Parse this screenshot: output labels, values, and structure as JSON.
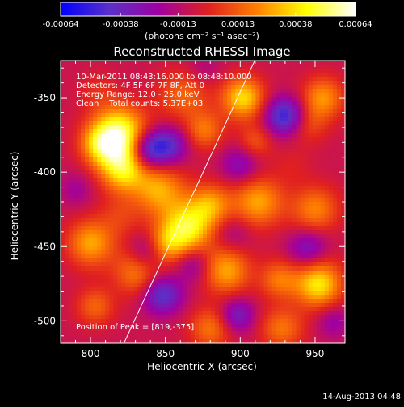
{
  "chart_data": {
    "type": "heatmap",
    "title": "Reconstructed RHESSI Image",
    "xlabel": "Heliocentric X (arcsec)",
    "ylabel": "Heliocentric Y (arcsec)",
    "xlim": [
      780,
      970
    ],
    "ylim": [
      -515,
      -325
    ],
    "x_ticks": [
      800,
      850,
      900,
      950
    ],
    "x_tick_labels": [
      "800",
      "850",
      "900",
      "950"
    ],
    "y_ticks": [
      -350,
      -400,
      -450,
      -500
    ],
    "y_tick_labels": [
      "-350",
      "-400",
      "-450",
      "-500"
    ],
    "colorbar": {
      "range": [
        -0.00064,
        0.00064
      ],
      "tick_values": [
        -0.00064,
        -0.00038,
        -0.00013,
        0.00013,
        0.00038,
        0.00064
      ],
      "tick_labels": [
        "-0.00064",
        "-0.00038",
        "-0.00013",
        "0.00013",
        "0.00038",
        "0.00064"
      ],
      "unit_label": "(photons cm⁻² s⁻¹ asec⁻²)",
      "colors": [
        "#0000ff",
        "#5a30c8",
        "#a000a0",
        "#e02020",
        "#ff8000",
        "#ffff00",
        "#ffffff"
      ]
    },
    "annotations": {
      "time_range": "10-Mar-2011 08:43:16.000 to 08:48:10.000",
      "detectors": "Detectors: 4F 5F 6F 7F 8F, Att 0",
      "energy_range": "Energy Range: 12.0 - 25.0 keV",
      "clean_counts": "Clean    Total counts: 5.37E+03",
      "peak": "Position of Peak = [819,-375]"
    },
    "limb_line": [
      [
        820,
        -520
      ],
      [
        912,
        -320
      ]
    ],
    "blobs": [
      {
        "x": 819,
        "y": -375,
        "v": 1.0,
        "r": 13
      },
      {
        "x": 822,
        "y": -398,
        "v": 0.7,
        "r": 11
      },
      {
        "x": 806,
        "y": -382,
        "v": 0.45,
        "r": 9
      },
      {
        "x": 862,
        "y": -348,
        "v": 0.35,
        "r": 12
      },
      {
        "x": 876,
        "y": -372,
        "v": 0.4,
        "r": 9
      },
      {
        "x": 902,
        "y": -350,
        "v": 0.7,
        "r": 10
      },
      {
        "x": 910,
        "y": -380,
        "v": 0.3,
        "r": 8
      },
      {
        "x": 955,
        "y": -350,
        "v": 0.5,
        "r": 10
      },
      {
        "x": 945,
        "y": -368,
        "v": 0.25,
        "r": 9
      },
      {
        "x": 846,
        "y": -412,
        "v": 0.55,
        "r": 12
      },
      {
        "x": 864,
        "y": -438,
        "v": 0.8,
        "r": 12
      },
      {
        "x": 880,
        "y": -422,
        "v": 0.5,
        "r": 10
      },
      {
        "x": 912,
        "y": -420,
        "v": 0.55,
        "r": 12
      },
      {
        "x": 950,
        "y": -425,
        "v": 0.45,
        "r": 11
      },
      {
        "x": 800,
        "y": -448,
        "v": 0.55,
        "r": 11
      },
      {
        "x": 832,
        "y": -466,
        "v": 0.5,
        "r": 11
      },
      {
        "x": 850,
        "y": -450,
        "v": 0.45,
        "r": 9
      },
      {
        "x": 891,
        "y": -466,
        "v": 0.55,
        "r": 11
      },
      {
        "x": 926,
        "y": -472,
        "v": 0.4,
        "r": 9
      },
      {
        "x": 952,
        "y": -475,
        "v": 0.75,
        "r": 11
      },
      {
        "x": 803,
        "y": -490,
        "v": 0.35,
        "r": 9
      },
      {
        "x": 880,
        "y": -505,
        "v": 0.4,
        "r": 10
      },
      {
        "x": 928,
        "y": -505,
        "v": 0.4,
        "r": 10
      },
      {
        "x": 805,
        "y": -345,
        "v": 0.15,
        "r": 9
      },
      {
        "x": 820,
        "y": -430,
        "v": 0.2,
        "r": 10
      },
      {
        "x": 935,
        "y": -395,
        "v": 0.1,
        "r": 9
      },
      {
        "x": 838,
        "y": -385,
        "v": -0.65,
        "r": 9
      },
      {
        "x": 852,
        "y": -382,
        "v": -0.5,
        "r": 9
      },
      {
        "x": 900,
        "y": -395,
        "v": -0.35,
        "r": 9
      },
      {
        "x": 930,
        "y": -362,
        "v": -0.7,
        "r": 9
      },
      {
        "x": 838,
        "y": -455,
        "v": -0.45,
        "r": 9
      },
      {
        "x": 848,
        "y": -482,
        "v": -0.6,
        "r": 9
      },
      {
        "x": 868,
        "y": -462,
        "v": -0.3,
        "r": 8
      },
      {
        "x": 898,
        "y": -496,
        "v": -0.45,
        "r": 8
      },
      {
        "x": 945,
        "y": -452,
        "v": -0.4,
        "r": 9
      },
      {
        "x": 895,
        "y": -442,
        "v": -0.2,
        "r": 9
      },
      {
        "x": 790,
        "y": -412,
        "v": -0.2,
        "r": 8
      },
      {
        "x": 962,
        "y": -500,
        "v": -0.25,
        "r": 8
      },
      {
        "x": 875,
        "y": -330,
        "v": -0.15,
        "r": 8
      }
    ],
    "background_level": -0.12
  },
  "footer": {
    "date": "14-Aug-2013 04:48"
  }
}
